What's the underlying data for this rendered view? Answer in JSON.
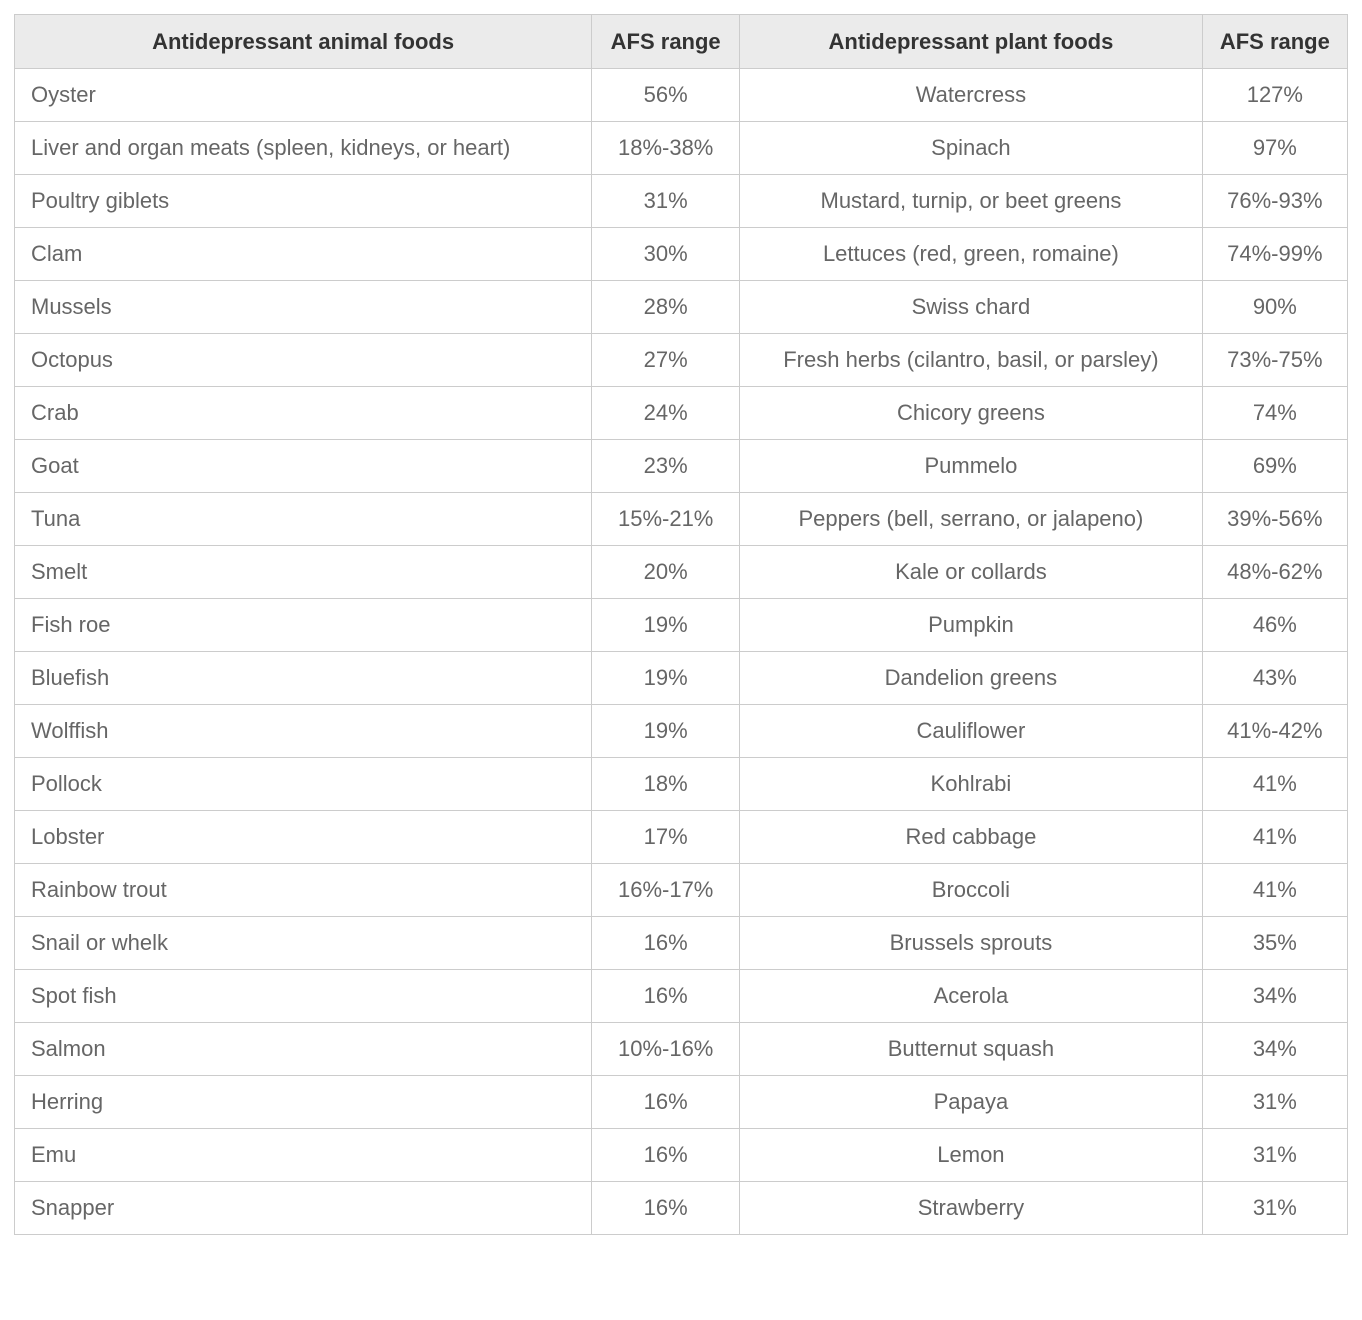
{
  "colors": {
    "header_background": "#ebebeb",
    "header_text": "#333333",
    "body_text": "#666666",
    "border": "#cccccc",
    "page_background": "#ffffff"
  },
  "table": {
    "headers": [
      "Antidepressant animal foods",
      "AFS range",
      "Antidepressant plant foods",
      "AFS range"
    ],
    "rows": [
      [
        "Oyster",
        "56%",
        "Watercress",
        "127%"
      ],
      [
        "Liver and organ meats (spleen, kidneys, or heart)",
        "18%-38%",
        "Spinach",
        "97%"
      ],
      [
        "Poultry giblets",
        "31%",
        "Mustard, turnip, or beet greens",
        "76%-93%"
      ],
      [
        "Clam",
        "30%",
        "Lettuces (red, green, romaine)",
        "74%-99%"
      ],
      [
        "Mussels",
        "28%",
        "Swiss chard",
        "90%"
      ],
      [
        "Octopus",
        "27%",
        "Fresh herbs (cilantro, basil, or parsley)",
        "73%-75%"
      ],
      [
        "Crab",
        "24%",
        "Chicory greens",
        "74%"
      ],
      [
        "Goat",
        "23%",
        "Pummelo",
        "69%"
      ],
      [
        "Tuna",
        "15%-21%",
        "Peppers (bell, serrano, or jalapeno)",
        "39%-56%"
      ],
      [
        "Smelt",
        "20%",
        "Kale or collards",
        "48%-62%"
      ],
      [
        "Fish roe",
        "19%",
        "Pumpkin",
        "46%"
      ],
      [
        "Bluefish",
        "19%",
        "Dandelion greens",
        "43%"
      ],
      [
        "Wolffish",
        "19%",
        "Cauliflower",
        "41%-42%"
      ],
      [
        "Pollock",
        "18%",
        "Kohlrabi",
        "41%"
      ],
      [
        "Lobster",
        "17%",
        "Red cabbage",
        "41%"
      ],
      [
        "Rainbow trout",
        "16%-17%",
        "Broccoli",
        "41%"
      ],
      [
        "Snail or whelk",
        "16%",
        "Brussels sprouts",
        "35%"
      ],
      [
        "Spot fish",
        "16%",
        "Acerola",
        "34%"
      ],
      [
        "Salmon",
        "10%-16%",
        "Butternut squash",
        "34%"
      ],
      [
        "Herring",
        "16%",
        "Papaya",
        "31%"
      ],
      [
        "Emu",
        "16%",
        "Lemon",
        "31%"
      ],
      [
        "Snapper",
        "16%",
        "Strawberry",
        "31%"
      ]
    ]
  }
}
